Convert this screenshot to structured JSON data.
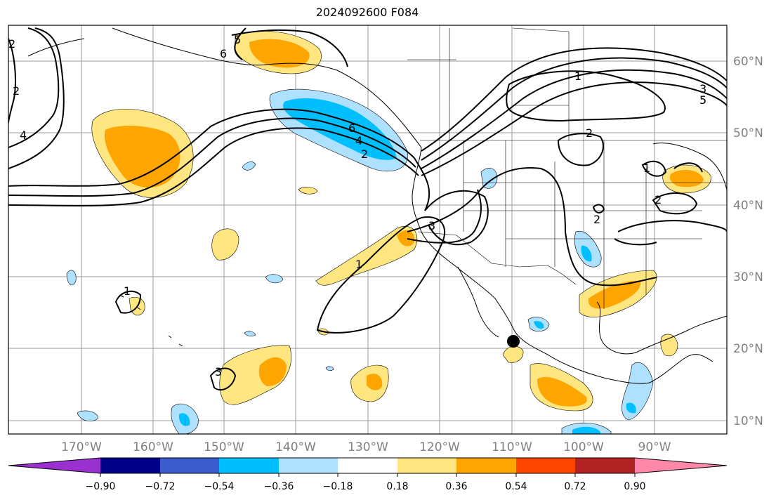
{
  "title": "2024092600 F084",
  "latitude_labels": [
    "60°N",
    "50°N",
    "40°N",
    "30°N",
    "20°N",
    "10°N"
  ],
  "longitude_labels": [
    "170°W",
    "160°W",
    "150°W",
    "140°W",
    "130°W",
    "120°W",
    "110°W",
    "100°W",
    "90°W"
  ],
  "colorbar": {
    "tick_labels": [
      "−0.90",
      "−0.72",
      "−0.54",
      "−0.36",
      "−0.18",
      "0.18",
      "0.36",
      "0.54",
      "0.72",
      "0.90"
    ],
    "colors": [
      "#9b30d0",
      "#000088",
      "#3a5ccc",
      "#00bfff",
      "#aee0ff",
      "#ffffff",
      "#ffe680",
      "#ffa500",
      "#ff4500",
      "#b22222",
      "#ff88aa"
    ]
  },
  "contour_labels": [
    "5",
    "6",
    "2",
    "4",
    "6",
    "4",
    "2",
    "1",
    "3",
    "2",
    "1",
    "2",
    "2",
    "1",
    "1",
    "3",
    "2",
    "5",
    "3"
  ],
  "marker": {
    "type": "black-dot",
    "longitude": -109.5,
    "latitude": 21.0
  }
}
